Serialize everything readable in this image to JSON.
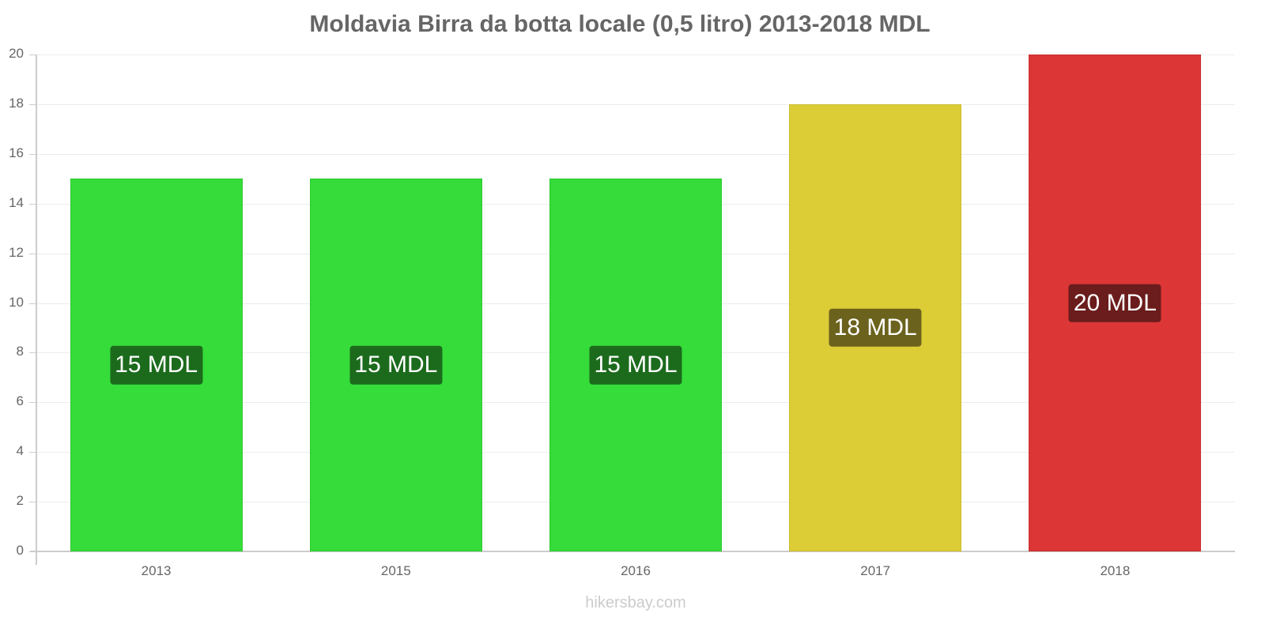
{
  "header": {
    "title": "Moldavia Birra da botta locale (0,5 litro) 2013-2018 MDL"
  },
  "footer": {
    "watermark": "hikersbay.com"
  },
  "y_ticks": [
    "0",
    "2",
    "4",
    "6",
    "8",
    "10",
    "12",
    "14",
    "16",
    "18",
    "20"
  ],
  "bars": [
    {
      "year": "2013",
      "value": 15,
      "label": "15 MDL",
      "color": "#36dc3a",
      "border": "#2ec932",
      "label_bg": "#1c6b1d"
    },
    {
      "year": "2015",
      "value": 15,
      "label": "15 MDL",
      "color": "#36dc3a",
      "border": "#2ec932",
      "label_bg": "#1c6b1d"
    },
    {
      "year": "2016",
      "value": 15,
      "label": "15 MDL",
      "color": "#36dc3a",
      "border": "#2ec932",
      "label_bg": "#1c6b1d"
    },
    {
      "year": "2017",
      "value": 18,
      "label": "18 MDL",
      "color": "#dccc36",
      "border": "#cbbb2e",
      "label_bg": "#6b631d"
    },
    {
      "year": "2018",
      "value": 20,
      "label": "20 MDL",
      "color": "#dc3636",
      "border": "#c92e2e",
      "label_bg": "#6b1c1c"
    }
  ],
  "chart_data": {
    "type": "bar",
    "title": "Moldavia Birra da botta locale (0,5 litro) 2013-2018 MDL",
    "categories": [
      "2013",
      "2015",
      "2016",
      "2017",
      "2018"
    ],
    "values": [
      15,
      15,
      15,
      18,
      20
    ],
    "data_labels": [
      "15 MDL",
      "15 MDL",
      "15 MDL",
      "18 MDL",
      "20 MDL"
    ],
    "xlabel": "",
    "ylabel": "",
    "ylim": [
      0,
      20
    ],
    "yticks": [
      0,
      2,
      4,
      6,
      8,
      10,
      12,
      14,
      16,
      18,
      20
    ],
    "grid": true,
    "legend": null,
    "bar_colors": [
      "#36dc3a",
      "#36dc3a",
      "#36dc3a",
      "#dccc36",
      "#dc3636"
    ],
    "source": "hikersbay.com"
  }
}
